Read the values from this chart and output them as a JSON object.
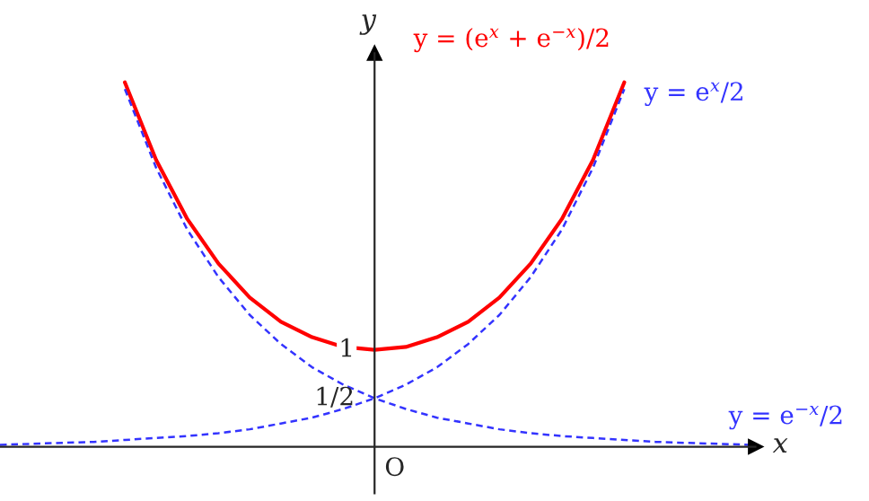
{
  "chart_data": {
    "type": "line",
    "xlabel": "x",
    "ylabel": "y",
    "categories": [
      null,
      null,
      null,
      null,
      null,
      null,
      null,
      null,
      null,
      null,
      null,
      null,
      null,
      null,
      null,
      null,
      null,
      null,
      null,
      null,
      null,
      null,
      null,
      null,
      null
    ],
    "ylim": [
      -0.56,
      4.61
    ],
    "yticks": [
      {
        "value": 0.5,
        "label": "1/2"
      },
      {
        "value": 1,
        "label": "1"
      }
    ],
    "annotations": [
      "O"
    ],
    "grid": false,
    "legend": false,
    "marker": "none",
    "series": [
      {
        "name": "y = (e$^{x}$ + e$^{−x}$)/2",
        "color": "#ff0000",
        "line_style": "solid",
        "values": [
          null,
          null,
          null,
          null,
          3.76,
          2.96,
          2.35,
          1.89,
          1.54,
          1.29,
          1.13,
          1.03,
          1,
          1.03,
          1.13,
          1.29,
          1.54,
          1.89,
          2.35,
          2.96,
          3.76,
          null,
          null,
          null,
          null
        ]
      },
      {
        "name": "y = e$^{x}$/2",
        "color": "#3333ff",
        "line_style": "dashed",
        "values": [
          0.02,
          0.03,
          0.04,
          0.05,
          0.07,
          0.09,
          0.11,
          0.14,
          0.18,
          0.24,
          0.3,
          0.39,
          0.5,
          0.64,
          0.82,
          1.06,
          1.36,
          1.75,
          2.24,
          2.88,
          3.69,
          null,
          null,
          null,
          null
        ]
      },
      {
        "name": "y = e$^{−x}$/2",
        "color": "#3333ff",
        "line_style": "dashed",
        "values": [
          null,
          null,
          null,
          null,
          3.69,
          2.88,
          2.24,
          1.75,
          1.36,
          1.06,
          0.82,
          0.64,
          0.5,
          0.39,
          0.3,
          0.24,
          0.18,
          0.14,
          0.11,
          0.09,
          0.07,
          0.05,
          0.04,
          0.03,
          0.02
        ]
      }
    ]
  }
}
